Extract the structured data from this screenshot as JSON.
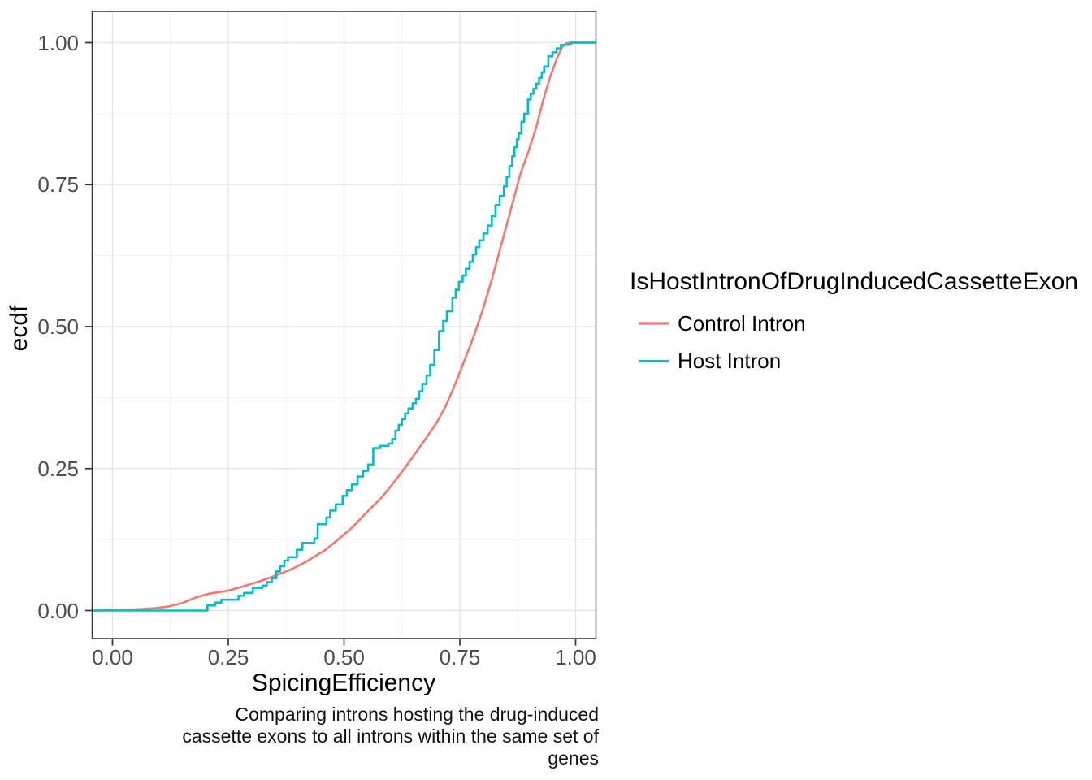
{
  "chart_data": {
    "type": "line",
    "subtype": "ecdf",
    "title": "",
    "xlabel": "SpicingEfficiency",
    "ylabel": "ecdf",
    "caption": "Comparing introns hosting the drug-induced cassette exons to all introns within the same set of genes",
    "legend": {
      "title": "IsHostIntronOfDrugInducedCassetteExon",
      "position": "right",
      "entries": [
        "Control Intron",
        "Host Intron"
      ]
    },
    "xlim": [
      0,
      1
    ],
    "ylim": [
      0,
      1
    ],
    "x_ticks": [
      {
        "label": "0.00",
        "value": 0.0
      },
      {
        "label": "0.25",
        "value": 0.25
      },
      {
        "label": "0.50",
        "value": 0.5
      },
      {
        "label": "0.75",
        "value": 0.75
      },
      {
        "label": "1.00",
        "value": 1.0
      }
    ],
    "y_ticks": [
      {
        "label": "0.00",
        "value": 0.0
      },
      {
        "label": "0.25",
        "value": 0.25
      },
      {
        "label": "0.50",
        "value": 0.5
      },
      {
        "label": "0.75",
        "value": 0.75
      },
      {
        "label": "1.00",
        "value": 1.0
      }
    ],
    "grid": "major-and-minor",
    "panel_range_x": [
      -0.044,
      1.044
    ],
    "panel_range_y": [
      -0.049,
      1.055
    ],
    "colors": {
      "control_intron": "#F8766D",
      "host_intron": "#00BFC4",
      "panel_border": "#333333",
      "grid_major": "#E6E6E6",
      "grid_minor": "#F1F1F1",
      "tick_text": "#4d4d4d"
    },
    "series": [
      {
        "name": "Control Intron",
        "color": "#F8766D",
        "style": "smooth",
        "points": [
          [
            -0.044,
            0
          ],
          [
            0.01,
            0.001
          ],
          [
            0.05,
            0.002
          ],
          [
            0.09,
            0.004
          ],
          [
            0.12,
            0.007
          ],
          [
            0.15,
            0.013
          ],
          [
            0.18,
            0.023
          ],
          [
            0.21,
            0.03
          ],
          [
            0.25,
            0.035
          ],
          [
            0.28,
            0.042
          ],
          [
            0.32,
            0.052
          ],
          [
            0.35,
            0.061
          ],
          [
            0.39,
            0.074
          ],
          [
            0.42,
            0.087
          ],
          [
            0.46,
            0.107
          ],
          [
            0.49,
            0.127
          ],
          [
            0.52,
            0.148
          ],
          [
            0.55,
            0.174
          ],
          [
            0.58,
            0.198
          ],
          [
            0.6,
            0.218
          ],
          [
            0.62,
            0.239
          ],
          [
            0.64,
            0.261
          ],
          [
            0.66,
            0.284
          ],
          [
            0.68,
            0.307
          ],
          [
            0.7,
            0.331
          ],
          [
            0.72,
            0.361
          ],
          [
            0.74,
            0.399
          ],
          [
            0.76,
            0.441
          ],
          [
            0.78,
            0.483
          ],
          [
            0.8,
            0.531
          ],
          [
            0.82,
            0.586
          ],
          [
            0.84,
            0.646
          ],
          [
            0.86,
            0.706
          ],
          [
            0.88,
            0.767
          ],
          [
            0.9,
            0.813
          ],
          [
            0.915,
            0.851
          ],
          [
            0.93,
            0.899
          ],
          [
            0.945,
            0.94
          ],
          [
            0.96,
            0.973
          ],
          [
            0.97,
            0.991
          ],
          [
            0.98,
            0.999
          ],
          [
            0.99,
            1
          ],
          [
            1.044,
            1
          ]
        ]
      },
      {
        "name": "Host Intron",
        "color": "#00BFC4",
        "style": "step",
        "points": [
          [
            -0.044,
            0
          ],
          [
            0.205,
            0.009
          ],
          [
            0.222,
            0.014
          ],
          [
            0.235,
            0.019
          ],
          [
            0.272,
            0.026
          ],
          [
            0.284,
            0.031
          ],
          [
            0.303,
            0.04
          ],
          [
            0.324,
            0.044
          ],
          [
            0.333,
            0.05
          ],
          [
            0.344,
            0.057
          ],
          [
            0.354,
            0.069
          ],
          [
            0.362,
            0.078
          ],
          [
            0.371,
            0.088
          ],
          [
            0.379,
            0.094
          ],
          [
            0.398,
            0.107
          ],
          [
            0.41,
            0.119
          ],
          [
            0.436,
            0.127
          ],
          [
            0.443,
            0.152
          ],
          [
            0.462,
            0.164
          ],
          [
            0.47,
            0.176
          ],
          [
            0.482,
            0.187
          ],
          [
            0.497,
            0.202
          ],
          [
            0.506,
            0.212
          ],
          [
            0.517,
            0.222
          ],
          [
            0.529,
            0.236
          ],
          [
            0.541,
            0.246
          ],
          [
            0.552,
            0.257
          ],
          [
            0.563,
            0.286
          ],
          [
            0.578,
            0.29
          ],
          [
            0.596,
            0.294
          ],
          [
            0.604,
            0.302
          ],
          [
            0.611,
            0.317
          ],
          [
            0.618,
            0.327
          ],
          [
            0.625,
            0.337
          ],
          [
            0.632,
            0.347
          ],
          [
            0.639,
            0.356
          ],
          [
            0.648,
            0.365
          ],
          [
            0.655,
            0.373
          ],
          [
            0.662,
            0.386
          ],
          [
            0.669,
            0.399
          ],
          [
            0.678,
            0.414
          ],
          [
            0.686,
            0.433
          ],
          [
            0.695,
            0.459
          ],
          [
            0.705,
            0.492
          ],
          [
            0.714,
            0.51
          ],
          [
            0.722,
            0.527
          ],
          [
            0.734,
            0.551
          ],
          [
            0.741,
            0.565
          ],
          [
            0.748,
            0.579
          ],
          [
            0.756,
            0.59
          ],
          [
            0.763,
            0.602
          ],
          [
            0.771,
            0.614
          ],
          [
            0.778,
            0.627
          ],
          [
            0.785,
            0.64
          ],
          [
            0.792,
            0.652
          ],
          [
            0.801,
            0.664
          ],
          [
            0.81,
            0.678
          ],
          [
            0.819,
            0.695
          ],
          [
            0.827,
            0.714
          ],
          [
            0.836,
            0.73
          ],
          [
            0.845,
            0.747
          ],
          [
            0.851,
            0.764
          ],
          [
            0.857,
            0.783
          ],
          [
            0.863,
            0.8
          ],
          [
            0.868,
            0.816
          ],
          [
            0.873,
            0.83
          ],
          [
            0.877,
            0.84
          ],
          [
            0.883,
            0.861
          ],
          [
            0.889,
            0.875
          ],
          [
            0.897,
            0.9
          ],
          [
            0.903,
            0.91
          ],
          [
            0.909,
            0.919
          ],
          [
            0.915,
            0.928
          ],
          [
            0.921,
            0.938
          ],
          [
            0.927,
            0.948
          ],
          [
            0.932,
            0.958
          ],
          [
            0.941,
            0.976
          ],
          [
            0.95,
            0.983
          ],
          [
            0.959,
            0.99
          ],
          [
            0.968,
            0.996
          ],
          [
            0.985,
            0.998
          ],
          [
            0.99,
            1
          ],
          [
            1.044,
            1
          ]
        ]
      }
    ]
  }
}
